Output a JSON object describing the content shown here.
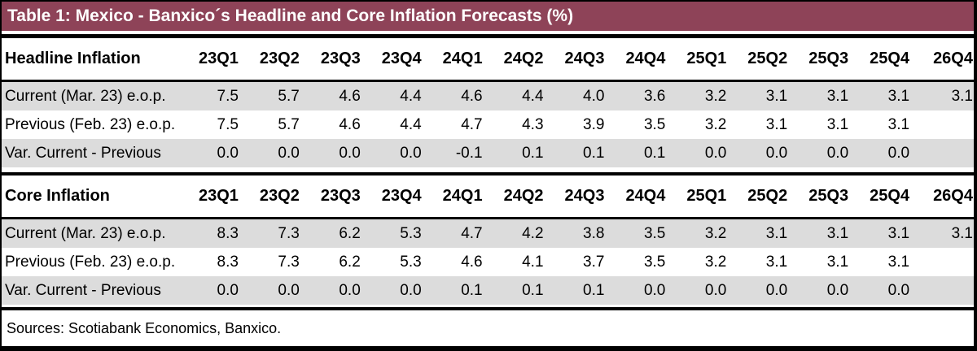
{
  "title": "Table 1: Mexico - Banxico´s Headline and Core Inflation Forecasts (%)",
  "columns": [
    "23Q1",
    "23Q2",
    "23Q3",
    "23Q4",
    "24Q1",
    "24Q2",
    "24Q3",
    "24Q4",
    "25Q1",
    "25Q2",
    "25Q3",
    "25Q4",
    "26Q4"
  ],
  "sections": [
    {
      "label": "Headline Inflation",
      "rows": [
        {
          "label": "Current (Mar. 23) e.o.p.",
          "values": [
            "7.5",
            "5.7",
            "4.6",
            "4.4",
            "4.6",
            "4.4",
            "4.0",
            "3.6",
            "3.2",
            "3.1",
            "3.1",
            "3.1",
            "3.1"
          ]
        },
        {
          "label": "Previous (Feb. 23) e.o.p.",
          "values": [
            "7.5",
            "5.7",
            "4.6",
            "4.4",
            "4.7",
            "4.3",
            "3.9",
            "3.5",
            "3.2",
            "3.1",
            "3.1",
            "3.1",
            ""
          ]
        },
        {
          "label": "Var. Current - Previous",
          "values": [
            "0.0",
            "0.0",
            "0.0",
            "0.0",
            "-0.1",
            "0.1",
            "0.1",
            "0.1",
            "0.0",
            "0.0",
            "0.0",
            "0.0",
            ""
          ]
        }
      ]
    },
    {
      "label": "Core Inflation",
      "rows": [
        {
          "label": "Current (Mar. 23) e.o.p.",
          "values": [
            "8.3",
            "7.3",
            "6.2",
            "5.3",
            "4.7",
            "4.2",
            "3.8",
            "3.5",
            "3.2",
            "3.1",
            "3.1",
            "3.1",
            "3.1"
          ]
        },
        {
          "label": "Previous (Feb. 23) e.o.p.",
          "values": [
            "8.3",
            "7.3",
            "6.2",
            "5.3",
            "4.6",
            "4.1",
            "3.7",
            "3.5",
            "3.2",
            "3.1",
            "3.1",
            "3.1",
            ""
          ]
        },
        {
          "label": "Var. Current - Previous",
          "values": [
            "0.0",
            "0.0",
            "0.0",
            "0.0",
            "0.1",
            "0.1",
            "0.1",
            "0.0",
            "0.0",
            "0.0",
            "0.0",
            "0.0",
            ""
          ]
        }
      ]
    }
  ],
  "sources": "Sources: Scotiabank Economics, Banxico.",
  "colors": {
    "title_bg": "#8E4358",
    "title_text": "#FFFFFF",
    "row_alt_bg": "#DCDCDC",
    "rule": "#000000"
  }
}
